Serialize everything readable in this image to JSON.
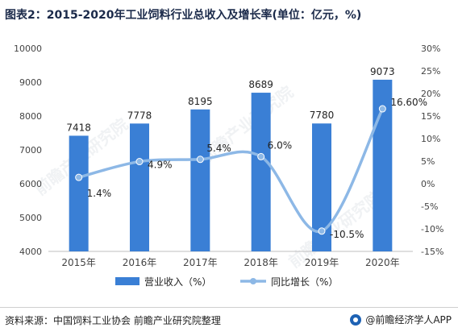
{
  "title": "图表2：2015-2020年工业饲料行业总收入及增长率(单位：亿元，%)",
  "footer": {
    "source": "资料来源：中国饲料工业协会 前瞻产业研究院整理",
    "brand": "@前瞻经济学人APP"
  },
  "watermark": "前瞻产业研究院",
  "colors": {
    "bar": "#3a7fd5",
    "line": "#8db8e6",
    "axis_text": "#444444"
  },
  "chart_data": {
    "type": "bar",
    "categories": [
      "2015年",
      "2016年",
      "2017年",
      "2018年",
      "2019年",
      "2020年"
    ],
    "series": [
      {
        "name": "营业收入（%）",
        "type": "bar",
        "axis": "left",
        "values": [
          7418,
          7778,
          8195,
          8689,
          7780,
          9073
        ],
        "labels": [
          "7418",
          "7778",
          "8195",
          "8689",
          "7780",
          "9073"
        ]
      },
      {
        "name": "同比增长（%）",
        "type": "line",
        "axis": "right",
        "values": [
          1.4,
          4.9,
          5.4,
          6.0,
          -10.5,
          16.6
        ],
        "labels": [
          "1.4%",
          "4.9%",
          "5.4%",
          "6.0%",
          "-10.5%",
          "16.60%"
        ]
      }
    ],
    "y_left": {
      "min": 4000,
      "max": 10000,
      "ticks": [
        "4000",
        "5000",
        "6000",
        "7000",
        "8000",
        "9000",
        "10000"
      ]
    },
    "y_right": {
      "min": -15,
      "max": 30,
      "ticks": [
        "-15%",
        "-10%",
        "-5%",
        "0%",
        "5%",
        "10%",
        "15%",
        "20%",
        "25%",
        "30%"
      ]
    },
    "legend_position": "bottom",
    "grid": false
  }
}
